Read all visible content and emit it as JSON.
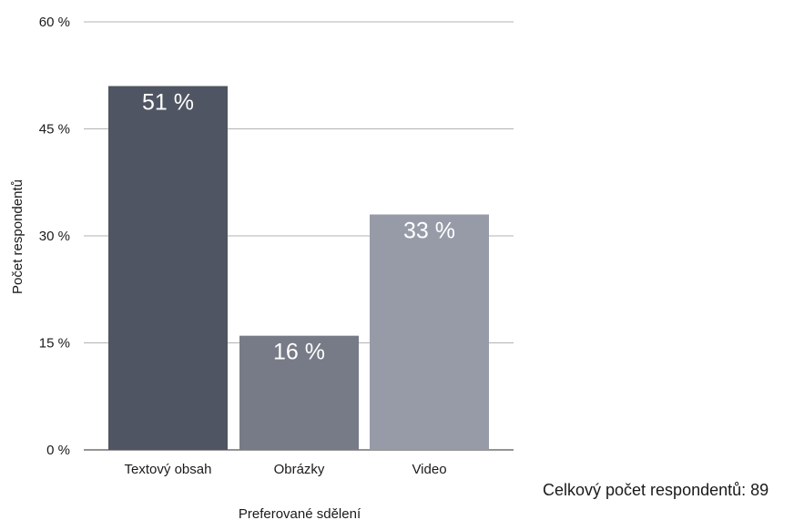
{
  "chart_data": {
    "type": "bar",
    "categories": [
      "Textový obsah",
      "Obrázky",
      "Video"
    ],
    "values": [
      51,
      16,
      33
    ],
    "data_labels": [
      "51 %",
      "16 %",
      "33 %"
    ],
    "xlabel": "Preferované sdělení",
    "ylabel": "Počet respondentů",
    "ylim": [
      0,
      60
    ],
    "yticks": [
      0,
      15,
      30,
      45,
      60
    ],
    "ytick_labels": [
      "0 %",
      "15 %",
      "30 %",
      "45 %",
      "60 %"
    ],
    "grid": true,
    "legend": "none",
    "colors": [
      "#4f5562",
      "#777b87",
      "#979ba8"
    ]
  },
  "note": "Celkový počet respondentů: 89"
}
